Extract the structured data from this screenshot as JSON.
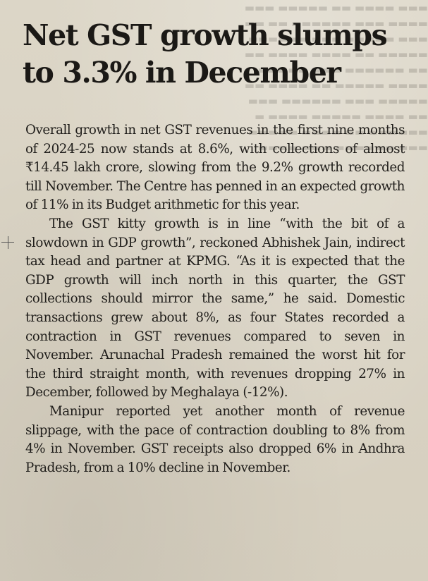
{
  "article": {
    "headline": "Net GST growth slumps to 3.3% in December",
    "paragraphs": [
      "Overall growth in net GST revenues in the first nine months of 2024-25 now stands at 8.6%, with collections of almost ₹14.45 lakh crore, slowing from the 9.2% growth recorded till November. The Centre has penned in an expected growth of 11% in its Budget arithmetic for this year.",
      "The GST kitty growth is in line “with the bit of a slowdown in GDP growth”, reckoned Abhishek Jain, indirect tax head and partner at KPMG. “As it is expected that the GDP growth will inch north in this quarter, the GST collections should mirror the same,” he said. Domestic transactions grew about 8%, as four States recorded a contraction in GST revenues compared to seven in November. Arunachal Pradesh remained the worst hit for the third straight month, with revenues dropping 27% in December, followed by Meghalaya (-12%).",
      "Manipur reported yet another month of revenue slippage, with the pace of contraction doubling to 8% from 4% in November. GST receipts also dropped 6% in Andhra Pradesh, from a 10% decline in November."
    ]
  }
}
